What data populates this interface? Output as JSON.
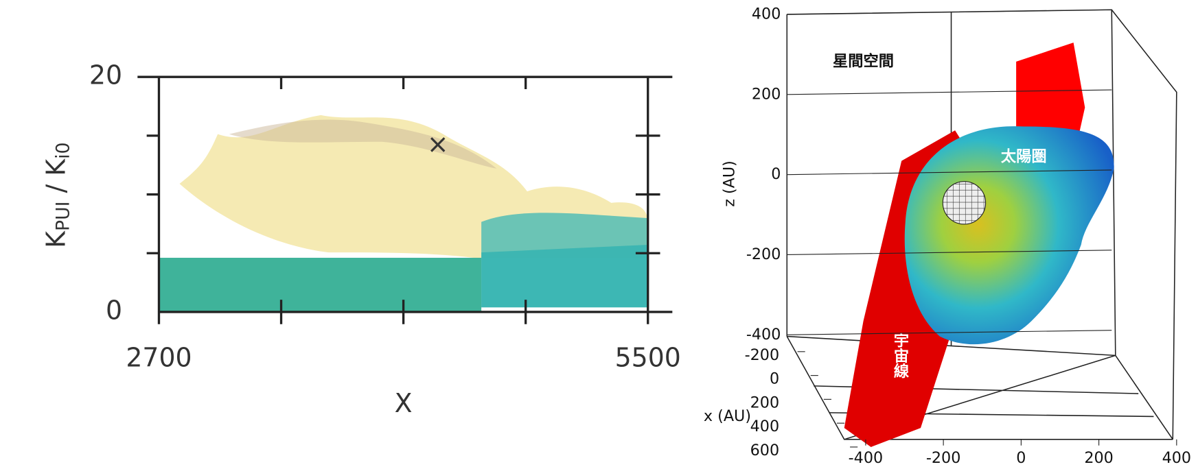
{
  "chart_data": [
    {
      "type": "density-scatter",
      "x_label": "X",
      "y_label": [
        "K",
        "PUI",
        " / K",
        "i0"
      ],
      "xlim": [
        2700,
        5500
      ],
      "xticks": [
        2700,
        5500
      ],
      "ylim": [
        0,
        20
      ],
      "yticks": [
        0,
        20
      ]
    },
    {
      "type": "3d-scatter",
      "z_label": "z (AU)",
      "x_label": "x (AU)",
      "zlim": [
        -400,
        400
      ],
      "zticks": [
        400,
        200,
        0,
        -200,
        -400
      ],
      "xlim": [
        -200,
        600
      ],
      "xticks": [
        -200,
        0,
        200,
        400,
        600
      ],
      "ylim": [
        -400,
        400
      ],
      "yticks": [
        -400,
        -200,
        0,
        200,
        400
      ],
      "annotations": [
        "星間空間",
        "太陽圏",
        "宇宙線"
      ]
    }
  ]
}
